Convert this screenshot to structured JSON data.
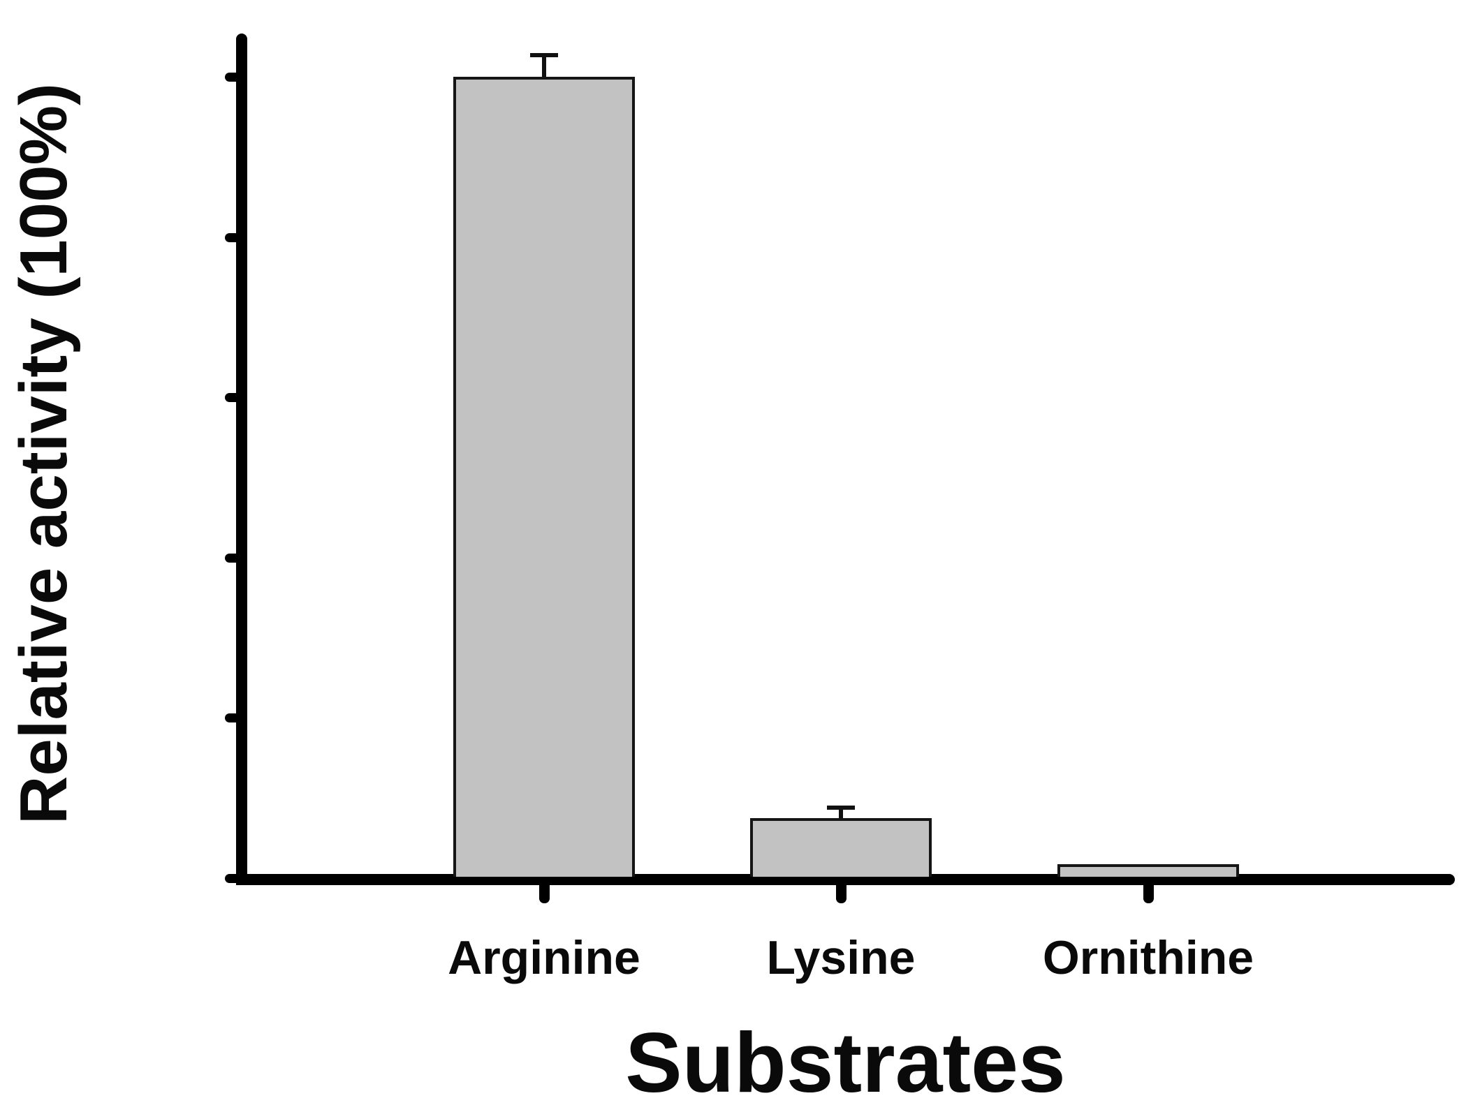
{
  "chart_data": {
    "type": "bar",
    "title": "",
    "xlabel": "Substrates",
    "ylabel": "Relative activity (100%)",
    "categories": [
      "Arginine",
      "Lysine",
      "Ornithine"
    ],
    "values": [
      100,
      7.5,
      1.7
    ],
    "errors": [
      3,
      1.6,
      0
    ],
    "yticks": [
      0,
      20,
      40,
      60,
      80,
      100
    ],
    "ylim": [
      0,
      105
    ],
    "grid": false,
    "legend": "none",
    "orientation": "vertical",
    "bar_fill_color": "#c2c2c2",
    "bar_edge_color": "#151515",
    "axis_color": "#000000",
    "text_color": "#0a0a0a",
    "background_color": "#ffffff"
  }
}
